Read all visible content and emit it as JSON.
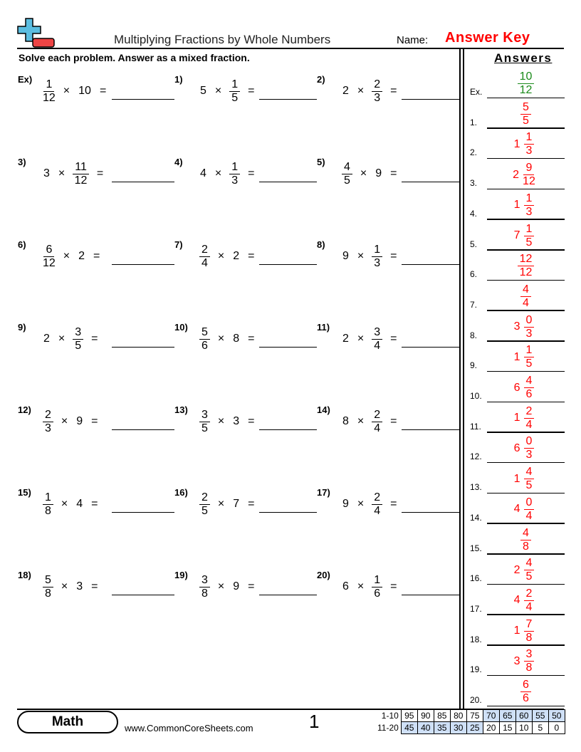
{
  "header": {
    "title": "Multiplying Fractions by Whole Numbers",
    "name_label": "Name:",
    "name_value": "Answer Key",
    "instructions": "Solve each problem. Answer as a mixed fraction."
  },
  "problems": [
    {
      "label": "Ex)",
      "terms": [
        {
          "n": "1",
          "d": "12"
        },
        "×",
        "10",
        "="
      ]
    },
    {
      "label": "1)",
      "terms": [
        "5",
        "×",
        {
          "n": "1",
          "d": "5"
        },
        "="
      ]
    },
    {
      "label": "2)",
      "terms": [
        "2",
        "×",
        {
          "n": "2",
          "d": "3"
        },
        "="
      ]
    },
    {
      "label": "3)",
      "terms": [
        "3",
        "×",
        {
          "n": "11",
          "d": "12"
        },
        "="
      ]
    },
    {
      "label": "4)",
      "terms": [
        "4",
        "×",
        {
          "n": "1",
          "d": "3"
        },
        "="
      ]
    },
    {
      "label": "5)",
      "terms": [
        {
          "n": "4",
          "d": "5"
        },
        "×",
        "9",
        "="
      ]
    },
    {
      "label": "6)",
      "terms": [
        {
          "n": "6",
          "d": "12"
        },
        "×",
        "2",
        "="
      ]
    },
    {
      "label": "7)",
      "terms": [
        {
          "n": "2",
          "d": "4"
        },
        "×",
        "2",
        "="
      ]
    },
    {
      "label": "8)",
      "terms": [
        "9",
        "×",
        {
          "n": "1",
          "d": "3"
        },
        "="
      ]
    },
    {
      "label": "9)",
      "terms": [
        "2",
        "×",
        {
          "n": "3",
          "d": "5"
        },
        "="
      ]
    },
    {
      "label": "10)",
      "terms": [
        {
          "n": "5",
          "d": "6"
        },
        "×",
        "8",
        "="
      ]
    },
    {
      "label": "11)",
      "terms": [
        "2",
        "×",
        {
          "n": "3",
          "d": "4"
        },
        "="
      ]
    },
    {
      "label": "12)",
      "terms": [
        {
          "n": "2",
          "d": "3"
        },
        "×",
        "9",
        "="
      ]
    },
    {
      "label": "13)",
      "terms": [
        {
          "n": "3",
          "d": "5"
        },
        "×",
        "3",
        "="
      ]
    },
    {
      "label": "14)",
      "terms": [
        "8",
        "×",
        {
          "n": "2",
          "d": "4"
        },
        "="
      ]
    },
    {
      "label": "15)",
      "terms": [
        {
          "n": "1",
          "d": "8"
        },
        "×",
        "4",
        "="
      ]
    },
    {
      "label": "16)",
      "terms": [
        {
          "n": "2",
          "d": "5"
        },
        "×",
        "7",
        "="
      ]
    },
    {
      "label": "17)",
      "terms": [
        "9",
        "×",
        {
          "n": "2",
          "d": "4"
        },
        "="
      ]
    },
    {
      "label": "18)",
      "terms": [
        {
          "n": "5",
          "d": "8"
        },
        "×",
        "3",
        "="
      ]
    },
    {
      "label": "19)",
      "terms": [
        {
          "n": "3",
          "d": "8"
        },
        "×",
        "9",
        "="
      ]
    },
    {
      "label": "20)",
      "terms": [
        "6",
        "×",
        {
          "n": "1",
          "d": "6"
        },
        "="
      ]
    }
  ],
  "answers": {
    "title": "Answers",
    "example_color": "#1a8a1a",
    "answer_color": "#ff0000",
    "items": [
      {
        "label": "Ex.",
        "w": "",
        "n": "10",
        "d": "12"
      },
      {
        "label": "1.",
        "w": "",
        "n": "5",
        "d": "5"
      },
      {
        "label": "2.",
        "w": "1",
        "n": "1",
        "d": "3"
      },
      {
        "label": "3.",
        "w": "2",
        "n": "9",
        "d": "12"
      },
      {
        "label": "4.",
        "w": "1",
        "n": "1",
        "d": "3"
      },
      {
        "label": "5.",
        "w": "7",
        "n": "1",
        "d": "5"
      },
      {
        "label": "6.",
        "w": "",
        "n": "12",
        "d": "12"
      },
      {
        "label": "7.",
        "w": "",
        "n": "4",
        "d": "4"
      },
      {
        "label": "8.",
        "w": "3",
        "n": "0",
        "d": "3"
      },
      {
        "label": "9.",
        "w": "1",
        "n": "1",
        "d": "5"
      },
      {
        "label": "10.",
        "w": "6",
        "n": "4",
        "d": "6"
      },
      {
        "label": "11.",
        "w": "1",
        "n": "2",
        "d": "4"
      },
      {
        "label": "12.",
        "w": "6",
        "n": "0",
        "d": "3"
      },
      {
        "label": "13.",
        "w": "1",
        "n": "4",
        "d": "5"
      },
      {
        "label": "14.",
        "w": "4",
        "n": "0",
        "d": "4"
      },
      {
        "label": "15.",
        "w": "",
        "n": "4",
        "d": "8"
      },
      {
        "label": "16.",
        "w": "2",
        "n": "4",
        "d": "5"
      },
      {
        "label": "17.",
        "w": "4",
        "n": "2",
        "d": "4"
      },
      {
        "label": "18.",
        "w": "1",
        "n": "7",
        "d": "8"
      },
      {
        "label": "19.",
        "w": "3",
        "n": "3",
        "d": "8"
      },
      {
        "label": "20.",
        "w": "",
        "n": "6",
        "d": "6"
      }
    ]
  },
  "footer": {
    "subject": "Math",
    "url": "www.CommonCoreSheets.com",
    "page": "1",
    "score_rows": [
      {
        "label": "1-10",
        "values": [
          "95",
          "90",
          "85",
          "80",
          "75",
          "70",
          "65",
          "60",
          "55",
          "50"
        ]
      },
      {
        "label": "11-20",
        "values": [
          "45",
          "40",
          "35",
          "30",
          "25",
          "20",
          "15",
          "10",
          "5",
          "0"
        ]
      }
    ]
  }
}
